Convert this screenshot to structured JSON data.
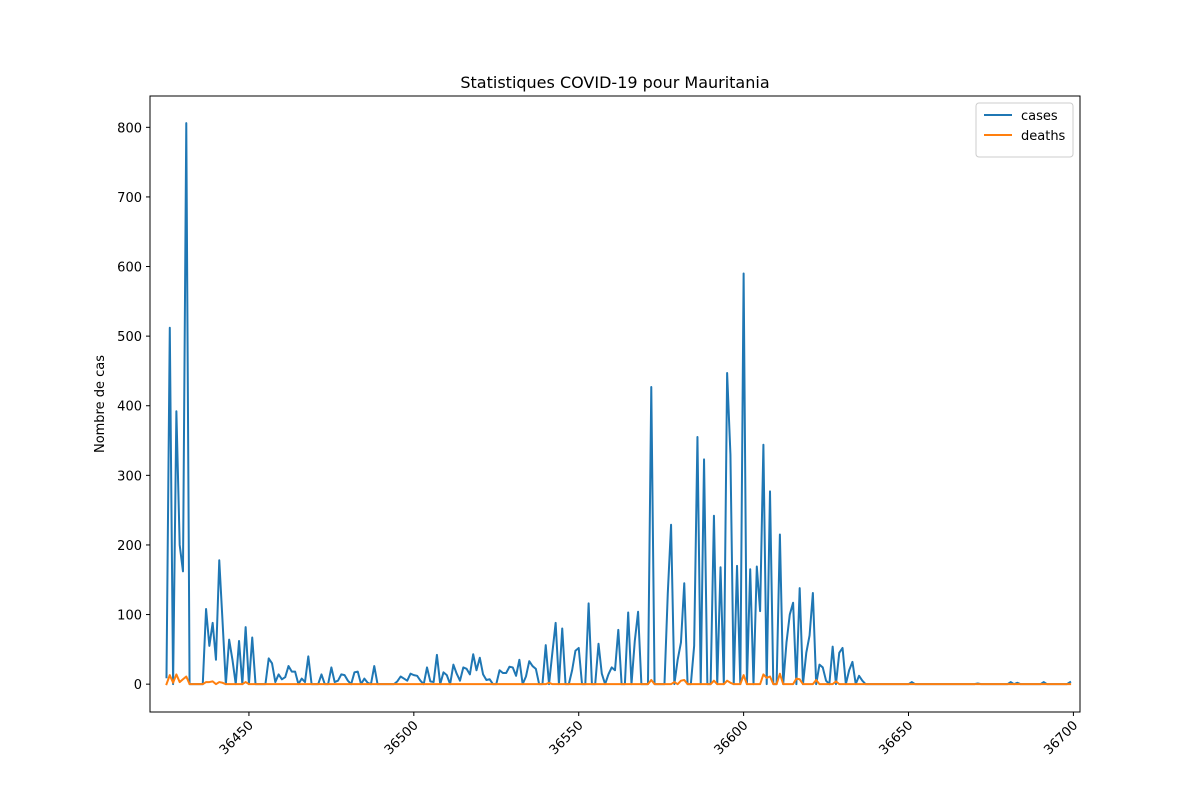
{
  "chart_data": {
    "type": "line",
    "title": "Statistiques COVID-19 pour Mauritania",
    "xlabel": "",
    "ylabel": "Nombre de cas",
    "xlim": [
      36420,
      36702
    ],
    "ylim": [
      -40,
      845
    ],
    "x_ticks": [
      36450,
      36500,
      36550,
      36600,
      36650,
      36700
    ],
    "y_ticks": [
      0,
      100,
      200,
      300,
      400,
      500,
      600,
      700,
      800
    ],
    "x_tick_rotation_deg": 45,
    "grid": false,
    "legend_position": "top-right",
    "series": [
      {
        "name": "cases",
        "color": "#1f77b4",
        "points": [
          [
            36425,
            10
          ],
          [
            36426,
            512
          ],
          [
            36427,
            0
          ],
          [
            36428,
            392
          ],
          [
            36429,
            200
          ],
          [
            36430,
            162
          ],
          [
            36431,
            806
          ],
          [
            36432,
            0
          ],
          [
            36433,
            0
          ],
          [
            36434,
            0
          ],
          [
            36435,
            0
          ],
          [
            36436,
            0
          ],
          [
            36437,
            108
          ],
          [
            36438,
            55
          ],
          [
            36439,
            88
          ],
          [
            36440,
            35
          ],
          [
            36441,
            178
          ],
          [
            36442,
            90
          ],
          [
            36443,
            0
          ],
          [
            36444,
            64
          ],
          [
            36445,
            35
          ],
          [
            36446,
            0
          ],
          [
            36447,
            62
          ],
          [
            36448,
            0
          ],
          [
            36449,
            82
          ],
          [
            36450,
            0
          ],
          [
            36451,
            67
          ],
          [
            36452,
            0
          ],
          [
            36453,
            0
          ],
          [
            36454,
            0
          ],
          [
            36455,
            0
          ],
          [
            36456,
            37
          ],
          [
            36457,
            30
          ],
          [
            36458,
            3
          ],
          [
            36459,
            14
          ],
          [
            36460,
            7
          ],
          [
            36461,
            10
          ],
          [
            36462,
            26
          ],
          [
            36463,
            18
          ],
          [
            36464,
            18
          ],
          [
            36465,
            0
          ],
          [
            36466,
            8
          ],
          [
            36467,
            3
          ],
          [
            36468,
            40
          ],
          [
            36469,
            0
          ],
          [
            36470,
            0
          ],
          [
            36471,
            0
          ],
          [
            36472,
            14
          ],
          [
            36473,
            0
          ],
          [
            36474,
            0
          ],
          [
            36475,
            24
          ],
          [
            36476,
            3
          ],
          [
            36477,
            5
          ],
          [
            36478,
            14
          ],
          [
            36479,
            13
          ],
          [
            36480,
            5
          ],
          [
            36481,
            0
          ],
          [
            36482,
            17
          ],
          [
            36483,
            18
          ],
          [
            36484,
            0
          ],
          [
            36485,
            8
          ],
          [
            36486,
            2
          ],
          [
            36487,
            0
          ],
          [
            36488,
            26
          ],
          [
            36489,
            0
          ],
          [
            36490,
            0
          ],
          [
            36491,
            0
          ],
          [
            36492,
            0
          ],
          [
            36493,
            0
          ],
          [
            36494,
            0
          ],
          [
            36495,
            4
          ],
          [
            36496,
            11
          ],
          [
            36497,
            8
          ],
          [
            36498,
            5
          ],
          [
            36499,
            15
          ],
          [
            36500,
            13
          ],
          [
            36501,
            12
          ],
          [
            36502,
            5
          ],
          [
            36503,
            0
          ],
          [
            36504,
            24
          ],
          [
            36505,
            4
          ],
          [
            36506,
            3
          ],
          [
            36507,
            42
          ],
          [
            36508,
            0
          ],
          [
            36509,
            17
          ],
          [
            36510,
            13
          ],
          [
            36511,
            0
          ],
          [
            36512,
            28
          ],
          [
            36513,
            15
          ],
          [
            36514,
            5
          ],
          [
            36515,
            24
          ],
          [
            36516,
            22
          ],
          [
            36517,
            14
          ],
          [
            36518,
            43
          ],
          [
            36519,
            20
          ],
          [
            36520,
            38
          ],
          [
            36521,
            14
          ],
          [
            36522,
            6
          ],
          [
            36523,
            7
          ],
          [
            36524,
            0
          ],
          [
            36525,
            0
          ],
          [
            36526,
            20
          ],
          [
            36527,
            16
          ],
          [
            36528,
            16
          ],
          [
            36529,
            25
          ],
          [
            36530,
            24
          ],
          [
            36531,
            12
          ],
          [
            36532,
            35
          ],
          [
            36533,
            0
          ],
          [
            36534,
            11
          ],
          [
            36535,
            33
          ],
          [
            36536,
            26
          ],
          [
            36537,
            22
          ],
          [
            36538,
            0
          ],
          [
            36539,
            0
          ],
          [
            36540,
            56
          ],
          [
            36541,
            0
          ],
          [
            36542,
            45
          ],
          [
            36543,
            88
          ],
          [
            36544,
            0
          ],
          [
            36545,
            80
          ],
          [
            36546,
            0
          ],
          [
            36547,
            0
          ],
          [
            36548,
            20
          ],
          [
            36549,
            48
          ],
          [
            36550,
            52
          ],
          [
            36551,
            0
          ],
          [
            36552,
            0
          ],
          [
            36553,
            116
          ],
          [
            36554,
            0
          ],
          [
            36555,
            0
          ],
          [
            36556,
            58
          ],
          [
            36557,
            15
          ],
          [
            36558,
            0
          ],
          [
            36559,
            14
          ],
          [
            36560,
            24
          ],
          [
            36561,
            20
          ],
          [
            36562,
            78
          ],
          [
            36563,
            0
          ],
          [
            36564,
            0
          ],
          [
            36565,
            103
          ],
          [
            36566,
            0
          ],
          [
            36567,
            62
          ],
          [
            36568,
            104
          ],
          [
            36569,
            0
          ],
          [
            36570,
            0
          ],
          [
            36571,
            0
          ],
          [
            36572,
            427
          ],
          [
            36573,
            0
          ],
          [
            36574,
            0
          ],
          [
            36575,
            0
          ],
          [
            36576,
            0
          ],
          [
            36577,
            130
          ],
          [
            36578,
            229
          ],
          [
            36579,
            0
          ],
          [
            36580,
            35
          ],
          [
            36581,
            60
          ],
          [
            36582,
            145
          ],
          [
            36583,
            0
          ],
          [
            36584,
            0
          ],
          [
            36585,
            55
          ],
          [
            36586,
            355
          ],
          [
            36587,
            0
          ],
          [
            36588,
            323
          ],
          [
            36589,
            0
          ],
          [
            36590,
            0
          ],
          [
            36591,
            242
          ],
          [
            36592,
            0
          ],
          [
            36593,
            168
          ],
          [
            36594,
            0
          ],
          [
            36595,
            447
          ],
          [
            36596,
            330
          ],
          [
            36597,
            0
          ],
          [
            36598,
            170
          ],
          [
            36599,
            0
          ],
          [
            36600,
            590
          ],
          [
            36601,
            0
          ],
          [
            36602,
            165
          ],
          [
            36603,
            0
          ],
          [
            36604,
            169
          ],
          [
            36605,
            105
          ],
          [
            36606,
            344
          ],
          [
            36607,
            0
          ],
          [
            36608,
            277
          ],
          [
            36609,
            0
          ],
          [
            36610,
            0
          ],
          [
            36611,
            215
          ],
          [
            36612,
            0
          ],
          [
            36613,
            60
          ],
          [
            36614,
            100
          ],
          [
            36615,
            117
          ],
          [
            36616,
            0
          ],
          [
            36617,
            138
          ],
          [
            36618,
            0
          ],
          [
            36619,
            45
          ],
          [
            36620,
            70
          ],
          [
            36621,
            131
          ],
          [
            36622,
            0
          ],
          [
            36623,
            28
          ],
          [
            36624,
            24
          ],
          [
            36625,
            5
          ],
          [
            36626,
            0
          ],
          [
            36627,
            54
          ],
          [
            36628,
            0
          ],
          [
            36629,
            45
          ],
          [
            36630,
            52
          ],
          [
            36631,
            0
          ],
          [
            36632,
            20
          ],
          [
            36633,
            32
          ],
          [
            36634,
            0
          ],
          [
            36635,
            12
          ],
          [
            36636,
            5
          ],
          [
            36637,
            0
          ],
          [
            36640,
            0
          ],
          [
            36650,
            0
          ],
          [
            36651,
            3
          ],
          [
            36652,
            0
          ],
          [
            36670,
            0
          ],
          [
            36671,
            1
          ],
          [
            36672,
            0
          ],
          [
            36680,
            0
          ],
          [
            36681,
            3
          ],
          [
            36682,
            0
          ],
          [
            36683,
            2
          ],
          [
            36684,
            0
          ],
          [
            36690,
            0
          ],
          [
            36691,
            3
          ],
          [
            36692,
            0
          ],
          [
            36698,
            0
          ],
          [
            36699,
            3
          ]
        ]
      },
      {
        "name": "deaths",
        "color": "#ff7f0e",
        "points": [
          [
            36425,
            0
          ],
          [
            36426,
            13
          ],
          [
            36427,
            2
          ],
          [
            36428,
            14
          ],
          [
            36429,
            3
          ],
          [
            36430,
            7
          ],
          [
            36431,
            11
          ],
          [
            36432,
            0
          ],
          [
            36436,
            0
          ],
          [
            36437,
            3
          ],
          [
            36438,
            3
          ],
          [
            36439,
            4
          ],
          [
            36440,
            0
          ],
          [
            36441,
            3
          ],
          [
            36442,
            2
          ],
          [
            36443,
            0
          ],
          [
            36448,
            0
          ],
          [
            36449,
            3
          ],
          [
            36450,
            0
          ],
          [
            36540,
            0
          ],
          [
            36541,
            2
          ],
          [
            36542,
            0
          ],
          [
            36571,
            0
          ],
          [
            36572,
            6
          ],
          [
            36573,
            0
          ],
          [
            36578,
            0
          ],
          [
            36579,
            3
          ],
          [
            36580,
            0
          ],
          [
            36581,
            5
          ],
          [
            36582,
            6
          ],
          [
            36583,
            0
          ],
          [
            36590,
            0
          ],
          [
            36591,
            5
          ],
          [
            36592,
            0
          ],
          [
            36594,
            0
          ],
          [
            36595,
            5
          ],
          [
            36596,
            2
          ],
          [
            36597,
            0
          ],
          [
            36599,
            0
          ],
          [
            36600,
            13
          ],
          [
            36601,
            0
          ],
          [
            36605,
            0
          ],
          [
            36606,
            14
          ],
          [
            36607,
            9
          ],
          [
            36608,
            11
          ],
          [
            36609,
            0
          ],
          [
            36610,
            0
          ],
          [
            36611,
            15
          ],
          [
            36612,
            0
          ],
          [
            36615,
            0
          ],
          [
            36616,
            8
          ],
          [
            36617,
            7
          ],
          [
            36618,
            0
          ],
          [
            36621,
            0
          ],
          [
            36622,
            6
          ],
          [
            36623,
            0
          ],
          [
            36627,
            0
          ],
          [
            36628,
            4
          ],
          [
            36629,
            0
          ],
          [
            36699,
            0
          ]
        ]
      }
    ]
  }
}
